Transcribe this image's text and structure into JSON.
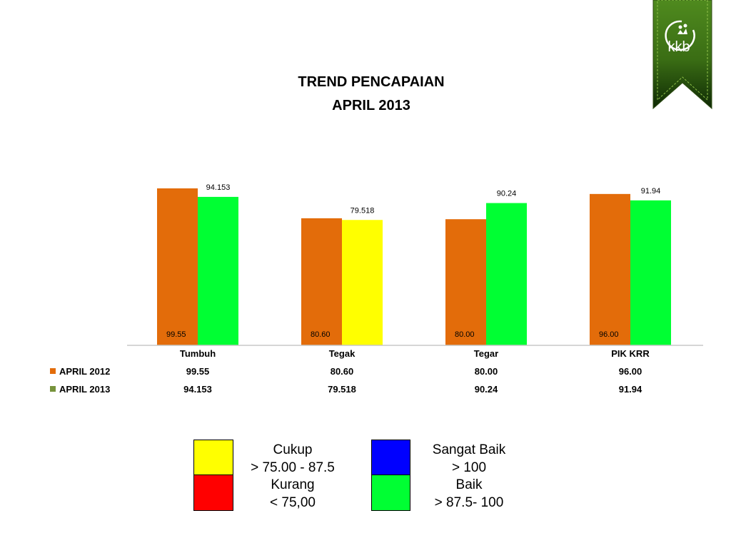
{
  "slide": {
    "title_line1": "TREND PENCAPAIAN",
    "title_line2": "APRIL 2013",
    "logo_text": "kkb"
  },
  "chart_data": {
    "type": "bar",
    "categories": [
      "Tumbuh",
      "Tegak",
      "Tegar",
      "PIK KRR"
    ],
    "series": [
      {
        "name": "APRIL 2012",
        "color": "#E36C0A",
        "values": [
          99.55,
          80.6,
          80.0,
          96.0
        ],
        "labels": [
          "99.55",
          "80.60",
          "80.00",
          "96.00"
        ],
        "fills": [
          "#E36C0A",
          "#E36C0A",
          "#E36C0A",
          "#E36C0A"
        ]
      },
      {
        "name": "APRIL 2013",
        "color": "#77933C",
        "values": [
          94.153,
          79.518,
          90.24,
          91.94
        ],
        "labels": [
          "94.153",
          "79.518",
          "90.24",
          "91.94"
        ],
        "fills": [
          "#00FF33",
          "#FFFF00",
          "#00FF33",
          "#00FF33"
        ]
      }
    ],
    "data_table": true,
    "ylim": [
      0,
      105
    ],
    "axis_visible": false
  },
  "legend": {
    "items": [
      {
        "label": "Cukup",
        "range": "> 75.00 -  87.5",
        "color": "#FFFF00"
      },
      {
        "label": "Kurang",
        "range": "< 75,00",
        "color": "#FF0000"
      },
      {
        "label": "Sangat Baik",
        "range": "> 100",
        "color": "#0000FF"
      },
      {
        "label": "Baik",
        "range": "> 87.5-  100",
        "color": "#00FF33"
      }
    ]
  }
}
